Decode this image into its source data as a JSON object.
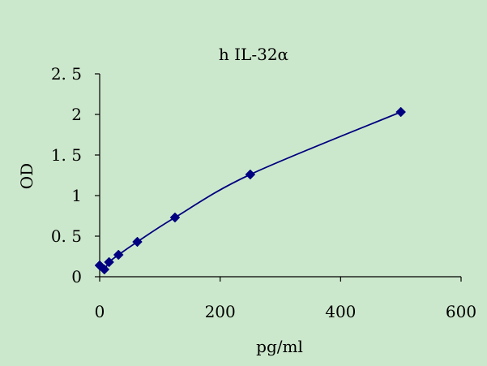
{
  "chart_data": {
    "type": "scatter",
    "title": "h IL-32α",
    "xlabel": "pg/ml",
    "ylabel": "OD",
    "xlim": [
      0,
      600
    ],
    "ylim": [
      0,
      2.5
    ],
    "x_ticks": [
      {
        "value": 0,
        "label": "0"
      },
      {
        "value": 200,
        "label": "200"
      },
      {
        "value": 400,
        "label": "400"
      },
      {
        "value": 600,
        "label": "600"
      }
    ],
    "y_ticks": [
      {
        "value": 0,
        "label": "0"
      },
      {
        "value": 0.5,
        "label": "0. 5"
      },
      {
        "value": 1,
        "label": "1"
      },
      {
        "value": 1.5,
        "label": "1. 5"
      },
      {
        "value": 2,
        "label": "2"
      },
      {
        "value": 2.5,
        "label": "2. 5"
      }
    ],
    "grid": false,
    "legend": "none",
    "trendline": "smooth curve through points",
    "series": [
      {
        "marker": "diamond",
        "color": "#000080",
        "points": [
          {
            "x": 0,
            "y": 0.14
          },
          {
            "x": 7.8,
            "y": 0.09
          },
          {
            "x": 15.6,
            "y": 0.18
          },
          {
            "x": 31.25,
            "y": 0.27
          },
          {
            "x": 62.5,
            "y": 0.43
          },
          {
            "x": 125,
            "y": 0.73
          },
          {
            "x": 250,
            "y": 1.26
          },
          {
            "x": 500,
            "y": 2.03
          }
        ]
      }
    ],
    "colors": {
      "background": "#cce8cc",
      "axis": "#000000",
      "series": "#000080"
    }
  }
}
